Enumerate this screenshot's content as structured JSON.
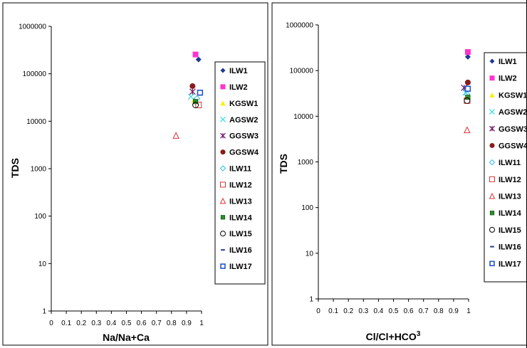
{
  "chart_data": [
    {
      "type": "scatter",
      "xlabel": "Na/Na+Ca",
      "ylabel": "TDS",
      "xlim": [
        0,
        1
      ],
      "ylim": [
        1,
        1000000
      ],
      "yscale": "log",
      "xticks": [
        "0",
        "0.1",
        "0.2",
        "0.3",
        "0.4",
        "0.5",
        "0.6",
        "0.7",
        "0.8",
        "0.9",
        "1"
      ],
      "yticks": [
        "1",
        "10",
        "100",
        "1000",
        "10000",
        "100000",
        "1000000"
      ],
      "grid": false,
      "legend_position": "right",
      "series": [
        {
          "name": "ILW1",
          "marker": "diamond",
          "color": "#1f3a93",
          "x": 0.98,
          "y": 200000
        },
        {
          "name": "ILW2",
          "marker": "square",
          "color": "#ff33cc",
          "x": 0.96,
          "y": 255000
        },
        {
          "name": "KGSW1",
          "marker": "triangle",
          "color": "#ffee00",
          "x": 0.95,
          "y": 28000
        },
        {
          "name": "AGSW2",
          "marker": "x",
          "color": "#33ddee",
          "x": 0.93,
          "y": 33000
        },
        {
          "name": "GGSW3",
          "marker": "star",
          "color": "#7a1f6e",
          "x": 0.94,
          "y": 42000
        },
        {
          "name": "GGSW4",
          "marker": "circle",
          "color": "#8b1a1a",
          "x": 0.94,
          "y": 55000
        },
        {
          "name": "ILW11",
          "marker": "diamond-open",
          "color": "#33bbee",
          "x": 0.97,
          "y": 30000
        },
        {
          "name": "ILW12",
          "marker": "square-open",
          "color": "#dd3333",
          "x": 0.98,
          "y": 22000
        },
        {
          "name": "ILW13",
          "marker": "triangle-open",
          "color": "#dd3333",
          "x": 0.83,
          "y": 5000
        },
        {
          "name": "ILW14",
          "marker": "square-small",
          "color": "#2e8b2e",
          "x": 0.96,
          "y": 26000
        },
        {
          "name": "ILW15",
          "marker": "circle-open",
          "color": "#000000",
          "x": 0.96,
          "y": 22000
        },
        {
          "name": "ILW16",
          "marker": "dash",
          "color": "#1f3a93",
          "x": 0.99,
          "y": 36000
        },
        {
          "name": "ILW17",
          "marker": "square-dot",
          "color": "#2255cc",
          "x": 0.99,
          "y": 40000
        }
      ]
    },
    {
      "type": "scatter",
      "xlabel": "Cl/Cl+HCO",
      "xlabel_sup": "3",
      "ylabel": "TDS",
      "xlim": [
        0,
        1
      ],
      "ylim": [
        1,
        1000000
      ],
      "yscale": "log",
      "xticks": [
        "0",
        "0.1",
        "0.2",
        "0.3",
        "0.4",
        "0.5",
        "0.6",
        "0.7",
        "0.8",
        "0.9",
        "1"
      ],
      "yticks": [
        "1",
        "10",
        "100",
        "1000",
        "10000",
        "100000",
        "1000000"
      ],
      "grid": false,
      "legend_position": "right",
      "series": [
        {
          "name": "ILW1",
          "marker": "diamond",
          "color": "#1f3a93",
          "x": 0.995,
          "y": 200000
        },
        {
          "name": "ILW2",
          "marker": "square",
          "color": "#ff33cc",
          "x": 0.995,
          "y": 255000
        },
        {
          "name": "KGSW1",
          "marker": "triangle",
          "color": "#ffee00",
          "x": 0.99,
          "y": 28000
        },
        {
          "name": "AGSW2",
          "marker": "x",
          "color": "#33ddee",
          "x": 0.98,
          "y": 33000
        },
        {
          "name": "GGSW3",
          "marker": "star",
          "color": "#7a1f6e",
          "x": 0.97,
          "y": 42000
        },
        {
          "name": "GGSW4",
          "marker": "circle",
          "color": "#8b1a1a",
          "x": 0.995,
          "y": 55000
        },
        {
          "name": "ILW11",
          "marker": "diamond-open",
          "color": "#33bbee",
          "x": 0.99,
          "y": 30000
        },
        {
          "name": "ILW12",
          "marker": "square-open",
          "color": "#dd3333",
          "x": 0.99,
          "y": 22000
        },
        {
          "name": "ILW13",
          "marker": "triangle-open",
          "color": "#dd3333",
          "x": 0.99,
          "y": 5000
        },
        {
          "name": "ILW14",
          "marker": "square-small",
          "color": "#2e8b2e",
          "x": 0.995,
          "y": 26000
        },
        {
          "name": "ILW15",
          "marker": "circle-open",
          "color": "#000000",
          "x": 0.99,
          "y": 22000
        },
        {
          "name": "ILW16",
          "marker": "dash",
          "color": "#1f3a93",
          "x": 0.995,
          "y": 36000
        },
        {
          "name": "ILW17",
          "marker": "square-dot",
          "color": "#2255cc",
          "x": 0.995,
          "y": 40000
        }
      ]
    }
  ]
}
